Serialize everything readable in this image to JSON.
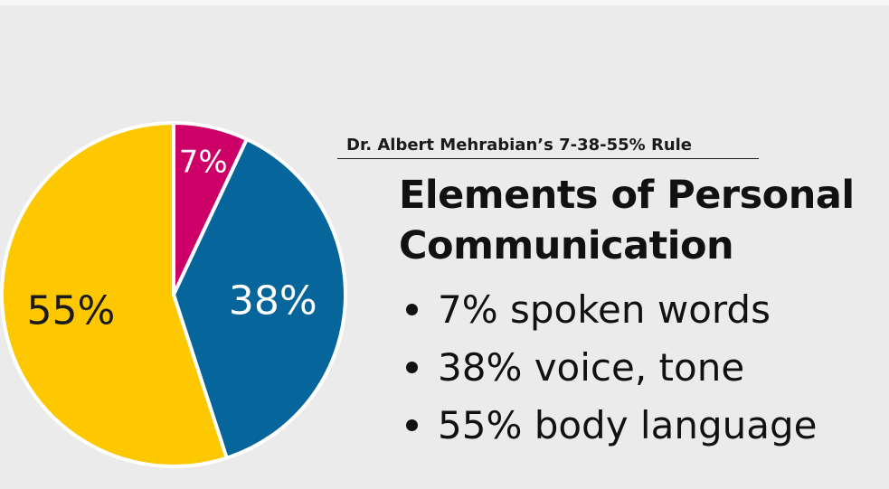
{
  "slide": {
    "subtitle": "Dr. Albert Mehrabian’s 7-38-55% Rule",
    "heading_line1": "Elements of Personal",
    "heading_line2": "Communication",
    "bullets": [
      "7% spoken words",
      "38% voice, tone",
      "55% body language"
    ]
  },
  "chart_data": {
    "type": "pie",
    "start": "12 o'clock, clockwise",
    "categories": [
      "spoken words",
      "voice, tone",
      "body language"
    ],
    "values": [
      7,
      38,
      55
    ],
    "labels": [
      "7%",
      "38%",
      "55%"
    ],
    "colors": [
      "#cc0066",
      "#06659a",
      "#fdc800"
    ],
    "label_colors": [
      "#ffffff",
      "#ffffff",
      "#1a1a1a"
    ],
    "separator_color": "#ffffff"
  }
}
